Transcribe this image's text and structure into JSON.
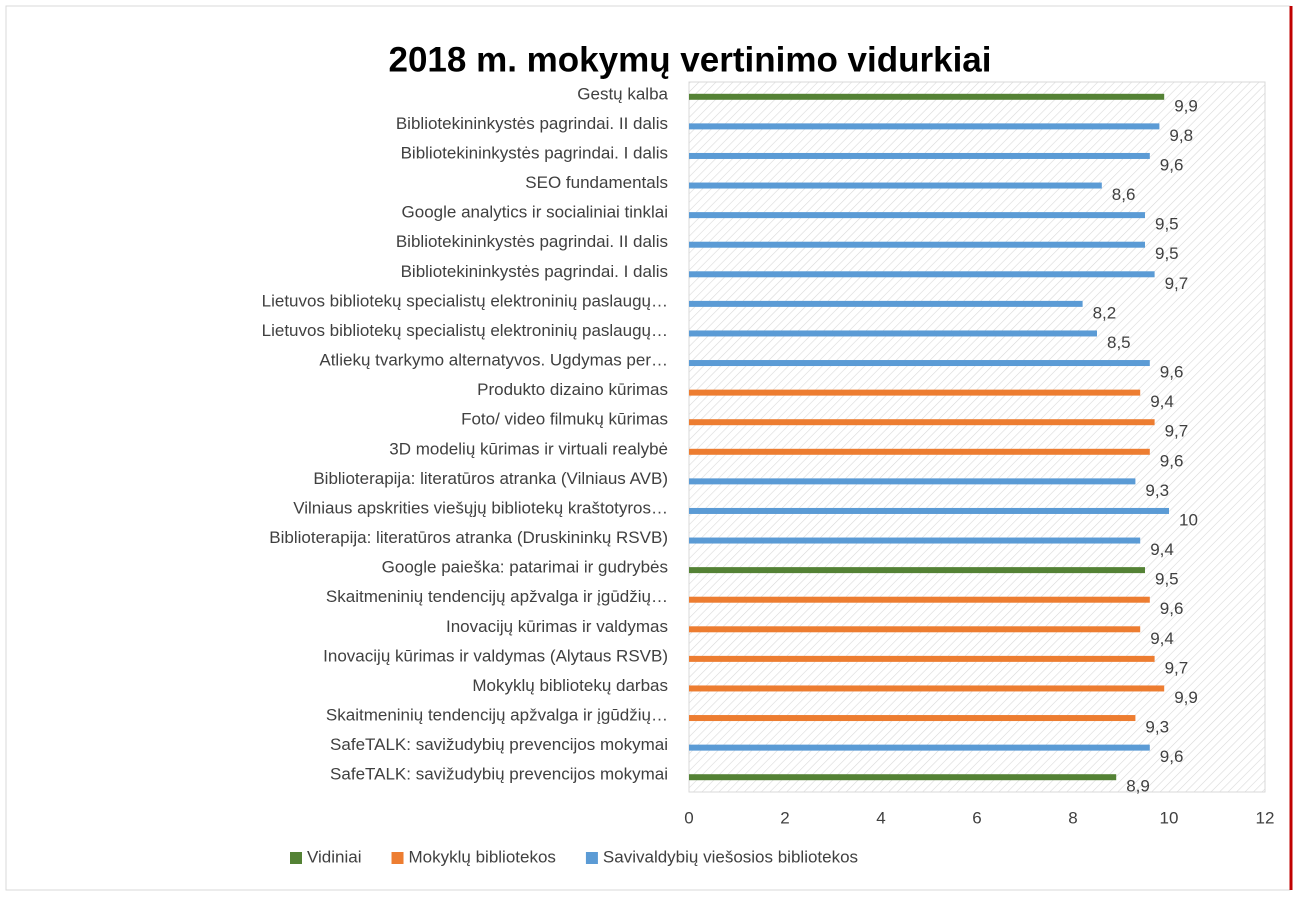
{
  "chart_data": {
    "type": "barh",
    "title": "2018 m. mokymų vertinimo vidurkiai",
    "categories": [
      "Gestų kalba",
      "Bibliotekininkystės pagrindai. II dalis",
      "Bibliotekininkystės pagrindai. I dalis",
      "SEO fundamentals",
      "Google analytics ir socialiniai tinklai",
      "Bibliotekininkystės pagrindai. II dalis",
      "Bibliotekininkystės pagrindai. I dalis",
      "Lietuvos bibliotekų specialistų elektroninių paslaugų…",
      "Lietuvos bibliotekų specialistų elektroninių paslaugų…",
      "Atliekų tvarkymo alternatyvos. Ugdymas per…",
      "Produkto dizaino kūrimas",
      "Foto/ video filmukų kūrimas",
      "3D modelių kūrimas ir virtuali realybė",
      "Biblioterapija: literatūros atranka (Vilniaus AVB)",
      "Vilniaus apskrities viešųjų bibliotekų kraštotyros…",
      "Biblioterapija: literatūros atranka (Druskininkų RSVB)",
      "Google paieška: patarimai ir gudrybės",
      "Skaitmeninių tendencijų apžvalga ir įgūdžių…",
      "Inovacijų kūrimas ir valdymas",
      "Inovacijų kūrimas ir valdymas (Alytaus RSVB)",
      "Mokyklų bibliotekų darbas",
      "Skaitmeninių tendencijų apžvalga ir įgūdžių…",
      "SafeTALK: savižudybių prevencijos mokymai",
      "SafeTALK: savižudybių prevencijos mokymai"
    ],
    "series": [
      {
        "name": "Vidiniai",
        "color": "#548235",
        "values": [
          9.9,
          null,
          null,
          null,
          null,
          null,
          null,
          null,
          null,
          null,
          null,
          null,
          null,
          null,
          null,
          null,
          9.5,
          null,
          null,
          null,
          null,
          null,
          null,
          8.9
        ],
        "value_labels": [
          "9,9",
          null,
          null,
          null,
          null,
          null,
          null,
          null,
          null,
          null,
          null,
          null,
          null,
          null,
          null,
          null,
          "9,5",
          null,
          null,
          null,
          null,
          null,
          null,
          "8,9"
        ]
      },
      {
        "name": "Mokyklų bibliotekos",
        "color": "#ed7d31",
        "values": [
          null,
          null,
          null,
          null,
          null,
          null,
          null,
          null,
          null,
          null,
          9.4,
          9.7,
          9.6,
          null,
          null,
          null,
          null,
          9.6,
          9.4,
          9.7,
          9.9,
          9.3,
          null,
          null
        ],
        "value_labels": [
          null,
          null,
          null,
          null,
          null,
          null,
          null,
          null,
          null,
          null,
          "9,4",
          "9,7",
          "9,6",
          null,
          null,
          null,
          null,
          "9,6",
          "9,4",
          "9,7",
          "9,9",
          "9,3",
          null,
          null
        ]
      },
      {
        "name": "Savivaldybių viešosios bibliotekos",
        "color": "#5b9bd5",
        "values": [
          null,
          9.8,
          9.6,
          8.6,
          9.5,
          9.5,
          9.7,
          8.2,
          8.5,
          9.6,
          null,
          null,
          null,
          9.3,
          10,
          9.4,
          null,
          null,
          null,
          null,
          null,
          null,
          9.6,
          null
        ],
        "value_labels": [
          null,
          "9,8",
          "9,6",
          "8,6",
          "9,5",
          "9,5",
          "9,7",
          "8,2",
          "8,5",
          "9,6",
          null,
          null,
          null,
          "9,3",
          "10",
          "9,4",
          null,
          null,
          null,
          null,
          null,
          null,
          "9,6",
          null
        ]
      }
    ],
    "xlim": [
      0,
      12
    ],
    "xticks": [
      0,
      2,
      4,
      6,
      8,
      10,
      12
    ],
    "legend": "bottom"
  }
}
